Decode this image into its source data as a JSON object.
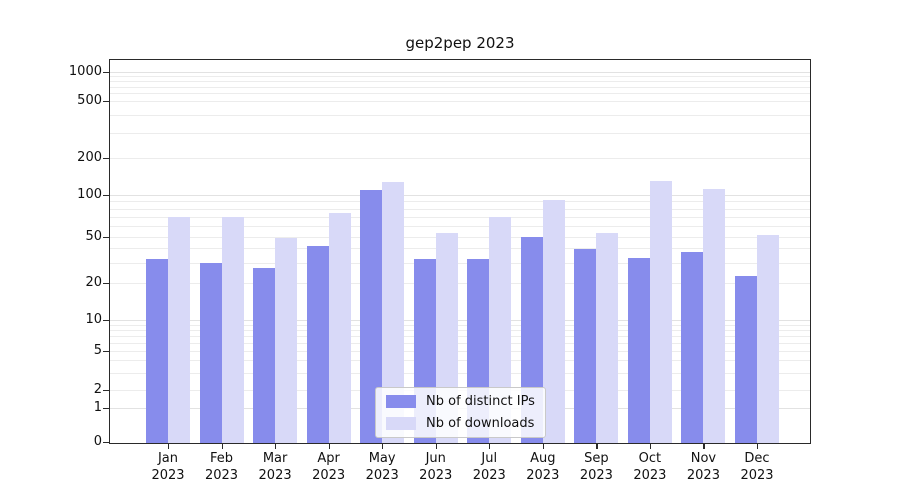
{
  "figure": {
    "title": "gep2pep 2023"
  },
  "chart_data": {
    "type": "bar",
    "title": "gep2pep 2023",
    "categories": [
      "Jan 2023",
      "Feb 2023",
      "Mar 2023",
      "Apr 2023",
      "May 2023",
      "Jun 2023",
      "Jul 2023",
      "Aug 2023",
      "Sep 2023",
      "Oct 2023",
      "Nov 2023",
      "Dec 2023"
    ],
    "series": [
      {
        "name": "Nb of distinct IPs",
        "color": "#878cec",
        "values": [
          32,
          30,
          27,
          42,
          110,
          32,
          32,
          50,
          39,
          33,
          37,
          23
        ]
      },
      {
        "name": "Nb of downloads",
        "color": "#d8d9f8",
        "values": [
          69,
          70,
          49,
          74,
          128,
          53,
          69,
          92,
          53,
          130,
          112,
          52
        ]
      }
    ],
    "xlabel": "",
    "ylabel": "",
    "yscale": "symlog",
    "yticks": [
      0,
      1,
      2,
      5,
      10,
      20,
      50,
      100,
      200,
      500,
      1000
    ],
    "ylim": [
      0,
      1300
    ],
    "grid": "horizontal log minor gridlines",
    "legend_position": "lower center",
    "legend": [
      "Nb of distinct IPs",
      "Nb of downloads"
    ],
    "colors": {
      "bar_dark": "#878cec",
      "bar_light": "#d8d9f8",
      "grid_major": "#e2e2e2",
      "grid_minor": "#ececec",
      "spine": "#2a2a2a"
    }
  }
}
